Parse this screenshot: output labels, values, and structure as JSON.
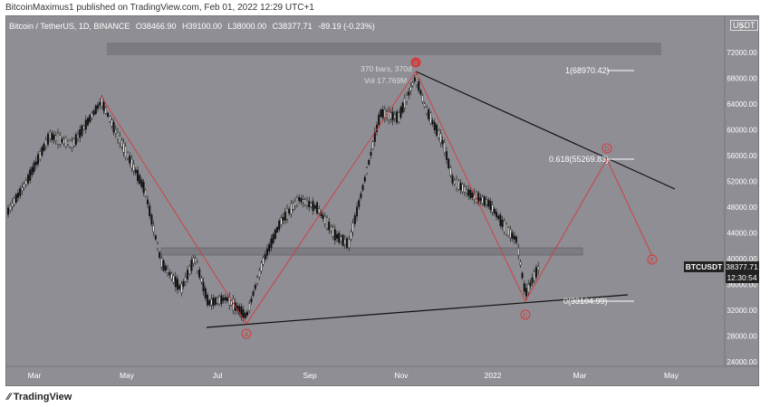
{
  "header": {
    "publisher_line": "BitcoinMaximus1 published on TradingView.com, Feb 01, 2022 12:29 UTC+1"
  },
  "symbol": {
    "name": "Bitcoin / TetherUS, 1D, BINANCE",
    "open": "O38466.90",
    "high": "H39100.00",
    "low": "L38000.00",
    "close": "C38377.71",
    "change": "-89.19 (-0.23%)"
  },
  "currency_tag": "USDT",
  "y_axis": {
    "ticks": [
      "72000.00",
      "68000.00",
      "64000.00",
      "60000.00",
      "56000.00",
      "52000.00",
      "48000.00",
      "44000.00",
      "40000.00",
      "36000.00",
      "32000.00",
      "28000.00",
      "24000.00"
    ],
    "first_tick": "?"
  },
  "x_axis": {
    "ticks": [
      "Mar",
      "May",
      "Jul",
      "Sep",
      "Nov",
      "2022",
      "Mar",
      "May"
    ]
  },
  "price_label": {
    "symbol": "BTCUSDT",
    "price": "38377.71",
    "countdown": "12:30:54"
  },
  "annotations": {
    "bars_info": "370 bars, 370d",
    "vol_info": "Vol 17.769M",
    "fib_1": "1(68970.42)",
    "fib_0618": "0.618(55269.83)",
    "fib_0": "0(33104.99)"
  },
  "wave_labels": [
    "A",
    "B",
    "C",
    "D",
    "E"
  ],
  "colors": {
    "chart_bg": "#8e8e94",
    "wave_red": "#d83a3a",
    "trendline": "#111111"
  },
  "footer": {
    "brand": "TradingView"
  }
}
